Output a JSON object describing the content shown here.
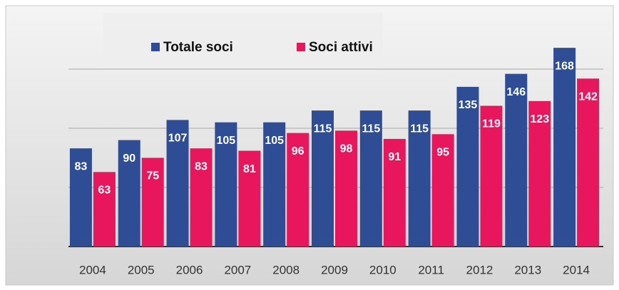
{
  "chart_data": {
    "type": "bar",
    "categories": [
      "2004",
      "2005",
      "2006",
      "2007",
      "2008",
      "2009",
      "2010",
      "2011",
      "2012",
      "2013",
      "2014"
    ],
    "series": [
      {
        "name": "Totale soci",
        "color": "#2e4d94",
        "values": [
          83,
          90,
          107,
          105,
          105,
          115,
          115,
          115,
          135,
          146,
          168
        ]
      },
      {
        "name": "Soci attivi",
        "color": "#e8175d",
        "values": [
          63,
          75,
          83,
          81,
          96,
          98,
          91,
          95,
          119,
          123,
          142
        ]
      }
    ],
    "ylim": [
      0,
      200
    ],
    "yticks": [
      0,
      50,
      100,
      150
    ],
    "grid": true,
    "legend": "top"
  }
}
